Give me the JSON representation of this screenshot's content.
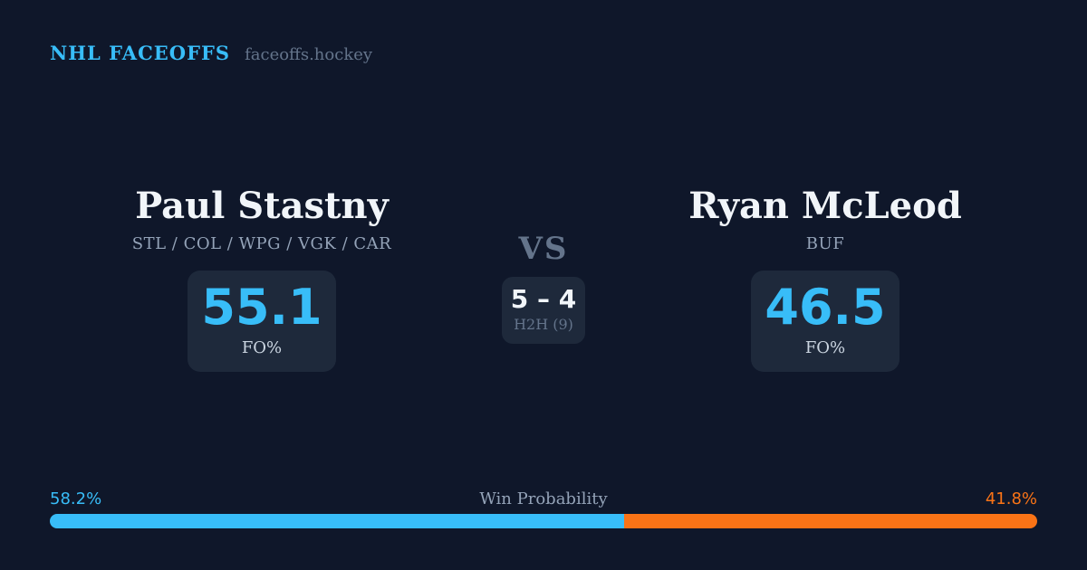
{
  "colors": {
    "bg": "#0f172a",
    "card": "#1e293b",
    "accent-blue": "#38bdf8",
    "accent-orange": "#f97316",
    "text-primary": "#f1f5f9",
    "text-muted": "#94a3b8",
    "text-dim": "#64748b",
    "text-label": "#cbd5e1"
  },
  "header": {
    "brand": "NHL FACEOFFS",
    "site": "faceoffs.hockey"
  },
  "matchup": {
    "vs_label": "VS",
    "h2h": {
      "score": "5 – 4",
      "label": "H2H (9)"
    },
    "player_left": {
      "name": "Paul Stastny",
      "teams": "STL / COL / WPG / VGK / CAR",
      "stat_value": "55.1",
      "stat_label": "FO%"
    },
    "player_right": {
      "name": "Ryan McLeod",
      "teams": "BUF",
      "stat_value": "46.5",
      "stat_label": "FO%"
    }
  },
  "win_probability": {
    "title": "Win Probability",
    "left_label": "58.2%",
    "right_label": "41.8%",
    "left_value": 58.2,
    "right_value": 41.8
  }
}
